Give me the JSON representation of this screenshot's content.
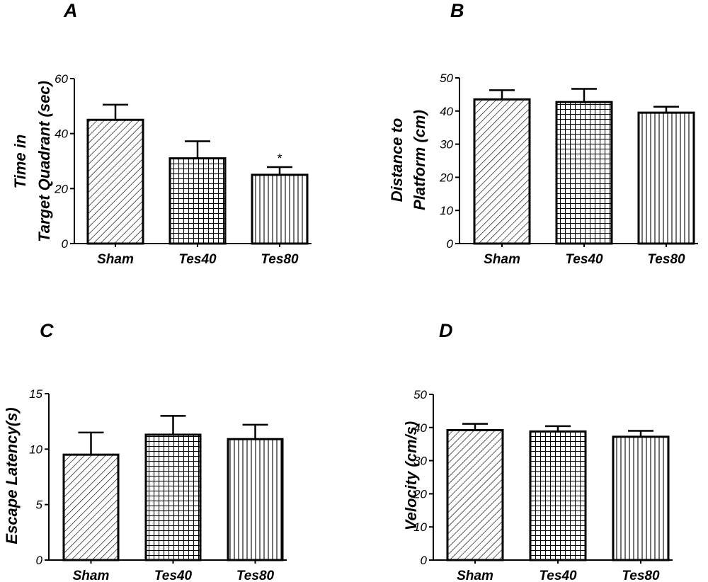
{
  "chart_data": [
    {
      "type": "bar",
      "panel": "A",
      "categories": [
        "Sham",
        "Tes40",
        "Tes80"
      ],
      "values": [
        45,
        31,
        25
      ],
      "errors": [
        5.5,
        6.2,
        2.8
      ],
      "annotations": [
        "",
        "",
        "*"
      ],
      "ylabel_lines": [
        "Time in",
        "Target Quadrant (sec)"
      ],
      "ylim": [
        0,
        60
      ],
      "yticks": [
        0,
        20,
        40,
        60
      ],
      "patterns": [
        "diag",
        "grid",
        "vert"
      ]
    },
    {
      "type": "bar",
      "panel": "B",
      "categories": [
        "Sham",
        "Tes40",
        "Tes80"
      ],
      "values": [
        43.5,
        42.7,
        39.5
      ],
      "errors": [
        2.8,
        4.0,
        1.8
      ],
      "annotations": [
        "",
        "",
        ""
      ],
      "ylabel_lines": [
        "Distance to",
        "Platform (cm)"
      ],
      "ylim": [
        0,
        50
      ],
      "yticks": [
        0,
        10,
        20,
        30,
        40,
        50
      ],
      "patterns": [
        "diag",
        "grid",
        "vert"
      ]
    },
    {
      "type": "bar",
      "panel": "C",
      "categories": [
        "Sham",
        "Tes40",
        "Tes80"
      ],
      "values": [
        9.5,
        11.3,
        10.9
      ],
      "errors": [
        2.0,
        1.7,
        1.3
      ],
      "annotations": [
        "",
        "",
        ""
      ],
      "ylabel_lines": [
        "Escape Latency(s)"
      ],
      "ylim": [
        0,
        15
      ],
      "yticks": [
        0,
        5,
        10,
        15
      ],
      "patterns": [
        "diag",
        "grid",
        "vert"
      ]
    },
    {
      "type": "bar",
      "panel": "D",
      "categories": [
        "Sham",
        "Tes40",
        "Tes80"
      ],
      "values": [
        39.2,
        38.8,
        37.2
      ],
      "errors": [
        1.9,
        1.6,
        1.8
      ],
      "annotations": [
        "",
        "",
        ""
      ],
      "ylabel_lines": [
        "Velocity (cm/s)"
      ],
      "ylim": [
        0,
        50
      ],
      "yticks": [
        0,
        10,
        20,
        30,
        40,
        50
      ],
      "patterns": [
        "diag",
        "grid",
        "vert"
      ]
    }
  ]
}
